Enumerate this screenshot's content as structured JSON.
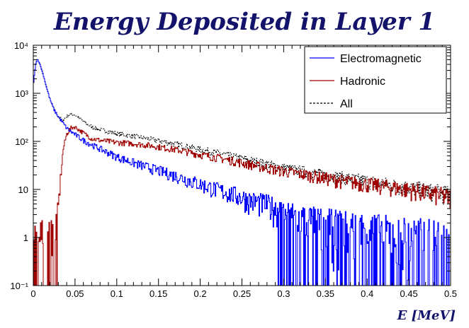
{
  "chart_data": {
    "type": "line",
    "title": "Energy Deposited in Layer 1",
    "xlabel": "E  [MeV]",
    "ylabel": "",
    "xlim": [
      0,
      0.5
    ],
    "ylim": [
      0.1,
      10000
    ],
    "yscale": "log",
    "grid": false,
    "legend_position": "top-right",
    "x_ticks": [
      "0",
      "0.05",
      "0.1",
      "0.15",
      "0.2",
      "0.25",
      "0.3",
      "0.35",
      "0.4",
      "0.45",
      "0.5"
    ],
    "y_ticks": [
      "10⁻¹",
      "1",
      "10",
      "10²",
      "10³",
      "10⁴"
    ],
    "series": [
      {
        "name": "Electromagnetic",
        "color": "#0000ff",
        "style": "solid",
        "x": [
          0.0,
          0.003,
          0.005,
          0.008,
          0.012,
          0.016,
          0.02,
          0.025,
          0.03,
          0.035,
          0.04,
          0.045,
          0.05,
          0.06,
          0.07,
          0.08,
          0.09,
          0.1,
          0.12,
          0.14,
          0.16,
          0.18,
          0.2,
          0.22,
          0.24,
          0.26,
          0.28,
          0.3,
          0.33,
          0.36,
          0.4,
          0.45,
          0.5
        ],
        "values": [
          1500,
          4200,
          5200,
          4000,
          2400,
          1300,
          750,
          450,
          330,
          250,
          190,
          160,
          140,
          105,
          85,
          70,
          58,
          48,
          36,
          28,
          22,
          17,
          13,
          10,
          8,
          6,
          5,
          3.5,
          2.5,
          2,
          1.6,
          1.2,
          1
        ]
      },
      {
        "name": "Hadronic",
        "color": "#a00000",
        "style": "solid",
        "x": [
          0.0,
          0.01,
          0.02,
          0.025,
          0.03,
          0.033,
          0.036,
          0.04,
          0.045,
          0.05,
          0.06,
          0.07,
          0.08,
          0.09,
          0.1,
          0.12,
          0.14,
          0.16,
          0.18,
          0.2,
          0.22,
          0.24,
          0.26,
          0.28,
          0.3,
          0.33,
          0.36,
          0.4,
          0.45,
          0.5
        ],
        "values": [
          1,
          1,
          1,
          1,
          4,
          20,
          70,
          140,
          190,
          200,
          150,
          115,
          105,
          100,
          95,
          90,
          82,
          72,
          63,
          53,
          46,
          39,
          33,
          28,
          24,
          20,
          16,
          13,
          10,
          7
        ]
      },
      {
        "name": "All",
        "color": "#000000",
        "style": "dashed",
        "x": [
          0.0,
          0.003,
          0.005,
          0.008,
          0.012,
          0.016,
          0.02,
          0.025,
          0.03,
          0.035,
          0.04,
          0.045,
          0.05,
          0.06,
          0.07,
          0.08,
          0.09,
          0.1,
          0.12,
          0.14,
          0.16,
          0.18,
          0.2,
          0.22,
          0.24,
          0.26,
          0.28,
          0.3,
          0.33,
          0.36,
          0.4,
          0.45,
          0.5
        ],
        "values": [
          1500,
          4200,
          5200,
          4000,
          2400,
          1300,
          750,
          450,
          330,
          270,
          330,
          370,
          360,
          260,
          200,
          175,
          160,
          145,
          128,
          112,
          96,
          82,
          68,
          58,
          48,
          40,
          34,
          28,
          23,
          19,
          15,
          11,
          8
        ]
      }
    ]
  }
}
